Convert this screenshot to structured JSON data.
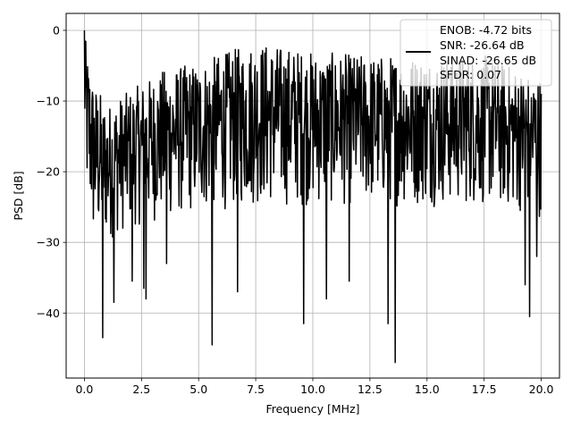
{
  "chart_data": {
    "type": "line",
    "title": "",
    "xlabel": "Frequency [MHz]",
    "ylabel": "PSD [dB]",
    "xlim": [
      -0.8,
      20.8
    ],
    "ylim": [
      -49.2,
      2.4
    ],
    "xticks": [
      0.0,
      2.5,
      5.0,
      7.5,
      10.0,
      12.5,
      15.0,
      17.5,
      20.0
    ],
    "xtick_labels": [
      "0.0",
      "2.5",
      "5.0",
      "7.5",
      "10.0",
      "12.5",
      "15.0",
      "17.5",
      "20.0"
    ],
    "yticks": [
      0,
      -10,
      -20,
      -30,
      -40
    ],
    "ytick_labels": [
      "0",
      "−10",
      "−20",
      "−30",
      "−40"
    ],
    "grid": true,
    "legend_position": "top-right",
    "legend_lines": [
      "ENOB: -4.72 bits",
      "SNR: -26.64 dB",
      "SINAD: -26.65 dB",
      "SFDR: 0.07"
    ],
    "series": [
      {
        "color": "#000000",
        "x_range": [
          0.0,
          20.0
        ],
        "num_points": 1024,
        "envelope": [
          {
            "x": 0.0,
            "top": 0.0,
            "bottom": -16.0
          },
          {
            "x": 0.1,
            "top": -2.5,
            "bottom": -24.5
          },
          {
            "x": 0.4,
            "top": -7.0,
            "bottom": -31.0
          },
          {
            "x": 1.0,
            "top": -10.5,
            "bottom": -30.0
          },
          {
            "x": 2.0,
            "top": -8.5,
            "bottom": -28.0
          },
          {
            "x": 3.5,
            "top": -5.5,
            "bottom": -27.0
          },
          {
            "x": 5.0,
            "top": -4.5,
            "bottom": -26.0
          },
          {
            "x": 7.5,
            "top": -1.5,
            "bottom": -25.0
          },
          {
            "x": 10.0,
            "top": -3.0,
            "bottom": -25.0
          },
          {
            "x": 12.5,
            "top": -3.5,
            "bottom": -25.0
          },
          {
            "x": 15.0,
            "top": -3.5,
            "bottom": -25.0
          },
          {
            "x": 17.5,
            "top": -3.5,
            "bottom": -25.0
          },
          {
            "x": 20.0,
            "top": -6.5,
            "bottom": -26.5
          }
        ],
        "deep_nulls": [
          {
            "x": 0.8,
            "y": -43.5
          },
          {
            "x": 1.3,
            "y": -38.5
          },
          {
            "x": 2.1,
            "y": -35.5
          },
          {
            "x": 2.6,
            "y": -36.5
          },
          {
            "x": 2.7,
            "y": -38.0
          },
          {
            "x": 3.6,
            "y": -33.0
          },
          {
            "x": 5.6,
            "y": -44.5
          },
          {
            "x": 6.7,
            "y": -37.0
          },
          {
            "x": 9.6,
            "y": -41.5
          },
          {
            "x": 10.6,
            "y": -38.0
          },
          {
            "x": 11.6,
            "y": -35.5
          },
          {
            "x": 13.3,
            "y": -41.5
          },
          {
            "x": 13.6,
            "y": -47.0
          },
          {
            "x": 19.3,
            "y": -36.0
          },
          {
            "x": 19.5,
            "y": -40.5
          },
          {
            "x": 19.8,
            "y": -32.0
          }
        ]
      }
    ]
  }
}
